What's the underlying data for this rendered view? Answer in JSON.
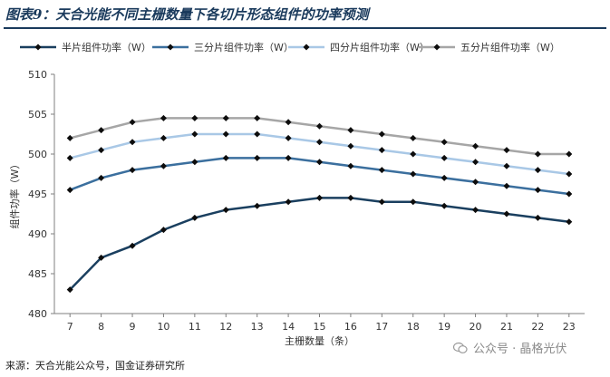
{
  "figure": {
    "title": "图表9：天合光能不同主栅数量下各切片形态组件的功率预测",
    "source": "来源：天合光能公众号，国金证券研究所",
    "watermark": "公众号 · 晶格光伏"
  },
  "chart_data": {
    "type": "line",
    "title": "",
    "xlabel": "主栅数量（条）",
    "ylabel": "组件功率（W）",
    "x": [
      7,
      8,
      9,
      10,
      11,
      12,
      13,
      14,
      15,
      16,
      17,
      18,
      19,
      20,
      21,
      22,
      23
    ],
    "ylim": [
      480,
      510
    ],
    "yticks": [
      480,
      485,
      490,
      495,
      500,
      505,
      510
    ],
    "grid": false,
    "legend_position": "top",
    "series": [
      {
        "name": "半片组件功率（W）",
        "color": "#1a3f5f",
        "values": [
          483,
          487,
          488.5,
          490.5,
          492,
          493,
          493.5,
          494,
          494.5,
          494.5,
          494,
          494,
          493.5,
          493,
          492.5,
          492,
          491.5
        ]
      },
      {
        "name": "三分片组件功率（W）",
        "color": "#3b6f9e",
        "values": [
          495.5,
          497,
          498,
          498.5,
          499,
          499.5,
          499.5,
          499.5,
          499,
          498.5,
          498,
          497.5,
          497,
          496.5,
          496,
          495.5,
          495
        ]
      },
      {
        "name": "四分片组件功率（W）",
        "color": "#a9c8e6",
        "values": [
          499.5,
          500.5,
          501.5,
          502,
          502.5,
          502.5,
          502.5,
          502,
          501.5,
          501,
          500.5,
          500,
          499.5,
          499,
          498.5,
          498,
          497.5
        ]
      },
      {
        "name": "五分片组件功率（W）",
        "color": "#a6a6a6",
        "values": [
          502,
          503,
          504,
          504.5,
          504.5,
          504.5,
          504.5,
          504,
          503.5,
          503,
          502.5,
          502,
          501.5,
          501,
          500.5,
          500,
          500
        ]
      }
    ]
  }
}
